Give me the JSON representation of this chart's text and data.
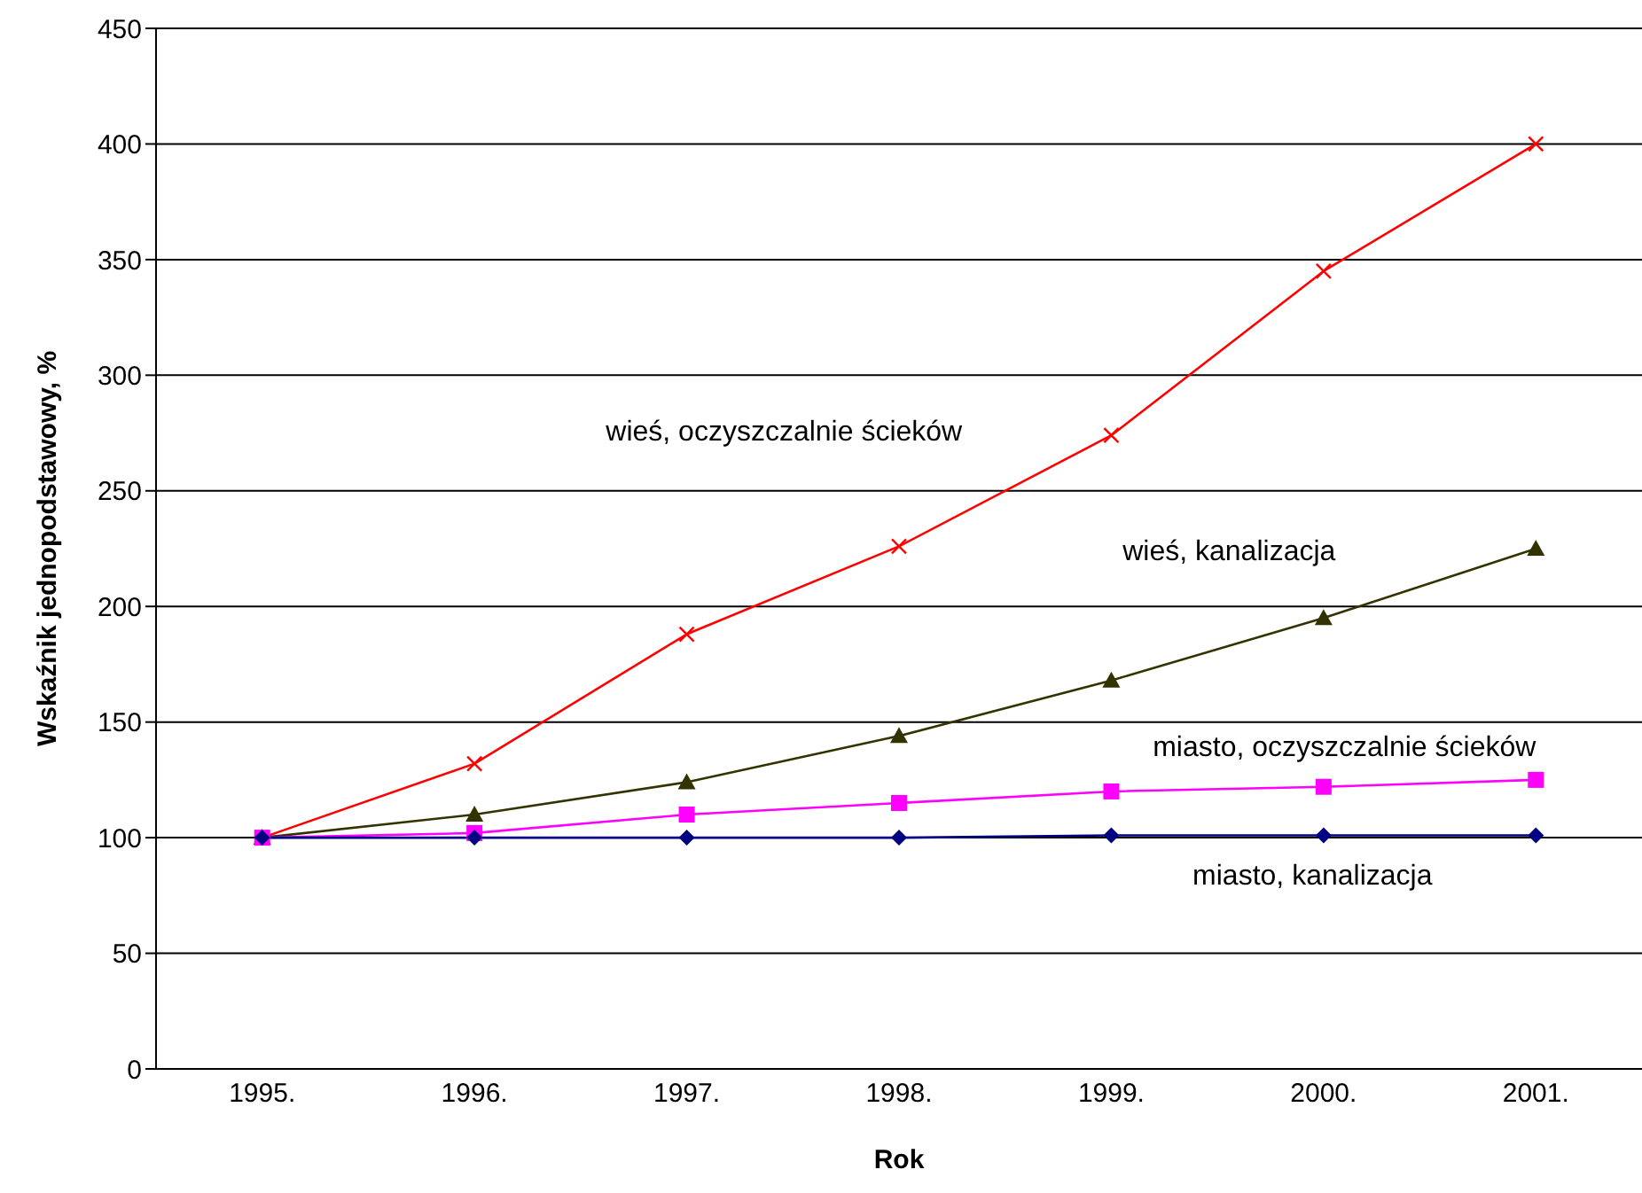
{
  "chart_data": {
    "type": "line",
    "xlabel": "Rok",
    "ylabel": "Wskaźnik jednopodstawowy, %",
    "categories": [
      "1995.",
      "1996.",
      "1997.",
      "1998.",
      "1999.",
      "2000.",
      "2001."
    ],
    "series": [
      {
        "name": "wieś, oczyszczalnie ścieków",
        "color": "#ff0000",
        "marker": "cross",
        "values": [
          100,
          132,
          188,
          226,
          274,
          345,
          400
        ]
      },
      {
        "name": "wieś, kanalizacja",
        "color": "#333300",
        "marker": "triangle",
        "values": [
          100,
          110,
          124,
          144,
          168,
          195,
          225
        ]
      },
      {
        "name": "miasto, oczyszczalnie ścieków",
        "color": "#ff00ff",
        "marker": "square",
        "values": [
          100,
          102,
          110,
          115,
          120,
          122,
          125
        ]
      },
      {
        "name": "miasto, kanalizacja",
        "color": "#000080",
        "marker": "diamond",
        "values": [
          100,
          100,
          100,
          100,
          101,
          101,
          101
        ]
      }
    ],
    "ylim": [
      0,
      450
    ],
    "yticks": [
      0,
      50,
      100,
      150,
      200,
      250,
      300,
      350,
      400,
      450
    ],
    "grid": "y",
    "legend": false
  }
}
